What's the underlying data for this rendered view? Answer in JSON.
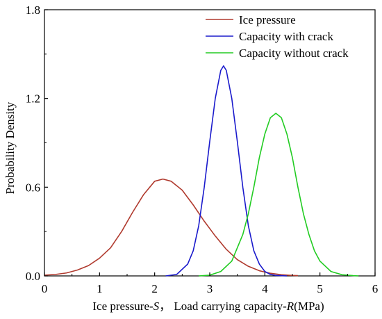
{
  "chart_data": {
    "type": "line",
    "xlabel": "Ice pressure-S， Load carrying capacity-R(MPa)",
    "xlabel_parts": {
      "prefix": "Ice pressure-",
      "var1": "S",
      "mid": "， Load carrying capacity-",
      "var2": "R",
      "suffix": "(MPa)"
    },
    "ylabel": "Probability Density",
    "xlim": [
      0,
      6
    ],
    "ylim": [
      0,
      1.8
    ],
    "x_ticks": [
      "0",
      "1",
      "2",
      "3",
      "4",
      "5",
      "6"
    ],
    "y_ticks": [
      "0.0",
      "0.6",
      "1.2",
      "1.8"
    ],
    "legend_position": "top-right",
    "grid": false,
    "series": [
      {
        "name": "Ice pressure",
        "color": "#b03a2e",
        "x": [
          0,
          0.2,
          0.4,
          0.6,
          0.8,
          1.0,
          1.2,
          1.4,
          1.6,
          1.8,
          2.0,
          2.15,
          2.3,
          2.5,
          2.7,
          2.9,
          3.1,
          3.3,
          3.5,
          3.7,
          3.9,
          4.1,
          4.3,
          4.5,
          4.6
        ],
        "y": [
          0.005,
          0.01,
          0.02,
          0.04,
          0.07,
          0.12,
          0.19,
          0.3,
          0.43,
          0.55,
          0.64,
          0.655,
          0.64,
          0.58,
          0.48,
          0.37,
          0.27,
          0.18,
          0.11,
          0.065,
          0.035,
          0.018,
          0.008,
          0.003,
          0.002
        ]
      },
      {
        "name": "Capacity with crack",
        "color": "#1a1acc",
        "x": [
          2.2,
          2.4,
          2.6,
          2.7,
          2.8,
          2.9,
          3.0,
          3.1,
          3.2,
          3.25,
          3.3,
          3.4,
          3.5,
          3.6,
          3.7,
          3.8,
          3.9,
          4.0,
          4.1,
          4.2,
          4.4
        ],
        "y": [
          0.0,
          0.01,
          0.08,
          0.17,
          0.34,
          0.6,
          0.91,
          1.2,
          1.39,
          1.42,
          1.39,
          1.2,
          0.91,
          0.6,
          0.34,
          0.17,
          0.08,
          0.03,
          0.01,
          0.003,
          0.0
        ]
      },
      {
        "name": "Capacity without crack",
        "color": "#22cc22",
        "x": [
          2.8,
          3.0,
          3.2,
          3.4,
          3.6,
          3.7,
          3.8,
          3.9,
          4.0,
          4.1,
          4.2,
          4.3,
          4.4,
          4.5,
          4.6,
          4.7,
          4.8,
          4.9,
          5.0,
          5.2,
          5.4,
          5.6,
          5.7
        ],
        "y": [
          0.0,
          0.005,
          0.03,
          0.1,
          0.28,
          0.42,
          0.6,
          0.8,
          0.96,
          1.07,
          1.1,
          1.07,
          0.96,
          0.8,
          0.6,
          0.42,
          0.28,
          0.17,
          0.1,
          0.03,
          0.008,
          0.002,
          0.0
        ]
      }
    ]
  }
}
